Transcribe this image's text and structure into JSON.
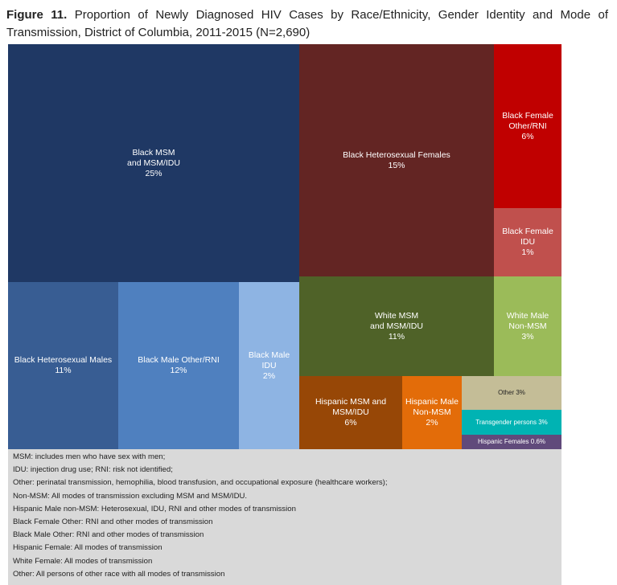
{
  "title_prefix": "Figure 11.",
  "title_text": "Proportion of Newly Diagnosed HIV Cases by Race/Ethnicity, Gender Identity and Mode of Transmission, District of Columbia, 2011-2015 (N=2,690)",
  "chart_data": {
    "type": "treemap",
    "title": "Proportion of Newly Diagnosed HIV Cases by Race/Ethnicity, Gender Identity and Mode of Transmission, District of Columbia, 2011-2015 (N=2,690)",
    "unit": "%",
    "cells": [
      {
        "label": "Black MSM\nand MSM/IDU",
        "value_label": "25%",
        "value": 25,
        "color": "#1f3864"
      },
      {
        "label": "Black Heterosexual Males",
        "value_label": "11%",
        "value": 11,
        "color": "#385d93"
      },
      {
        "label": "Black Male Other/RNI",
        "value_label": "12%",
        "value": 12,
        "color": "#4f80bf"
      },
      {
        "label": "Black Male\nIDU",
        "value_label": "2%",
        "value": 2,
        "color": "#8eb4e3"
      },
      {
        "label": "Black Heterosexual Females",
        "value_label": "15%",
        "value": 15,
        "color": "#632523"
      },
      {
        "label": "Black Female\nOther/RNI",
        "value_label": "6%",
        "value": 6,
        "color": "#c00000"
      },
      {
        "label": "Black Female\nIDU",
        "value_label": "1%",
        "value": 1,
        "color": "#c0504d"
      },
      {
        "label": "White MSM\nand MSM/IDU",
        "value_label": "11%",
        "value": 11,
        "color": "#4f6228"
      },
      {
        "label": "White Male\nNon-MSM",
        "value_label": "3%",
        "value": 3,
        "color": "#9bbb59"
      },
      {
        "label": "Hispanic MSM and\nMSM/IDU",
        "value_label": "6%",
        "value": 6,
        "color": "#974706"
      },
      {
        "label": "Hispanic Male\nNon-MSM",
        "value_label": "2%",
        "value": 2,
        "color": "#e36c09"
      },
      {
        "label": "Other",
        "value_label": "3%",
        "value": 3,
        "color": "#c4bd97"
      },
      {
        "label": "Transgender persons",
        "value_label": "3%",
        "value": 3,
        "color": "#00b3b3"
      },
      {
        "label": "Hispanic Females",
        "value_label": "0.6%",
        "value": 0.6,
        "color": "#604a7b"
      }
    ]
  },
  "notes": [
    "MSM: includes men who have sex with men;",
    "IDU: injection drug use; RNI: risk not identified;",
    "Other: perinatal transmission, hemophilia, blood transfusion, and occupational exposure (healthcare workers);",
    "Non-MSM: All modes of transmission excluding MSM and MSM/IDU.",
    "Hispanic Male non-MSM:  Heterosexual, IDU, RNI and other modes of transmission",
    "Black Female Other: RNI and other modes of transmission",
    "Black Male Other: RNI and other modes of transmission",
    "Hispanic Female: All modes of transmission",
    "White Female: All modes of transmission",
    "Other: All persons of other race with all modes of transmission"
  ]
}
